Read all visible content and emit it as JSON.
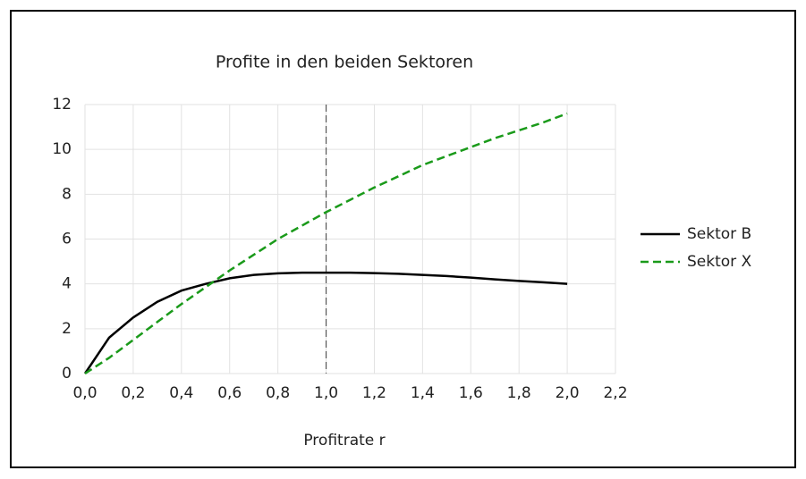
{
  "chart_data": {
    "type": "line",
    "title": "Profite in den beiden Sektoren",
    "xlabel": "Profitrate r",
    "x": [
      0,
      0.1,
      0.2,
      0.3,
      0.4,
      0.5,
      0.6,
      0.7,
      0.8,
      0.9,
      1.0,
      1.1,
      1.2,
      1.3,
      1.4,
      1.5,
      1.6,
      1.7,
      1.8,
      1.9,
      2.0
    ],
    "series": [
      {
        "name": "Sektor B",
        "color": "#000000",
        "line_style": "solid",
        "values": [
          0,
          1.6,
          2.5,
          3.2,
          3.7,
          4.0,
          4.25,
          4.4,
          4.47,
          4.5,
          4.5,
          4.5,
          4.48,
          4.45,
          4.4,
          4.35,
          4.28,
          4.2,
          4.13,
          4.07,
          4.0
        ]
      },
      {
        "name": "Sektor X",
        "color": "#1a9a1a",
        "line_style": "dashed",
        "values": [
          0,
          0.7,
          1.5,
          2.3,
          3.1,
          3.85,
          4.6,
          5.3,
          6.0,
          6.6,
          7.2,
          7.75,
          8.3,
          8.8,
          9.3,
          9.7,
          10.1,
          10.5,
          10.85,
          11.2,
          11.6
        ]
      }
    ],
    "vertical_line_x": 1.0,
    "xlim": [
      0,
      2.2
    ],
    "xticks": [
      {
        "value": 0,
        "label": "0,0"
      },
      {
        "value": 0.2,
        "label": "0,2"
      },
      {
        "value": 0.4,
        "label": "0,4"
      },
      {
        "value": 0.6,
        "label": "0,6"
      },
      {
        "value": 0.8,
        "label": "0,8"
      },
      {
        "value": 1.0,
        "label": "1,0"
      },
      {
        "value": 1.2,
        "label": "1,2"
      },
      {
        "value": 1.4,
        "label": "1,4"
      },
      {
        "value": 1.6,
        "label": "1,6"
      },
      {
        "value": 1.8,
        "label": "1,8"
      },
      {
        "value": 2.0,
        "label": "2,0"
      },
      {
        "value": 2.2,
        "label": "2,2"
      }
    ],
    "ylim": [
      0,
      12
    ],
    "yticks": [
      0,
      2,
      4,
      6,
      8,
      10,
      12
    ],
    "grid": true,
    "legend": "right"
  }
}
